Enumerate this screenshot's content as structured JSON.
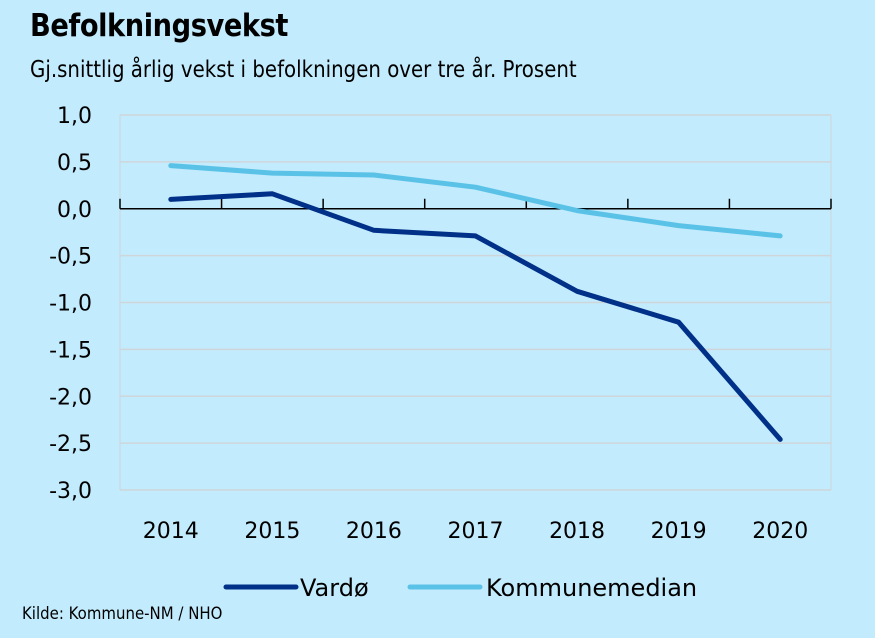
{
  "title": "Befolkningsvekst",
  "subtitle": "Gj.snittlig årlig vekst i befolkningen over tre år. Prosent",
  "source": "Kilde: Kommune-NM / NHO",
  "colors": {
    "background": "#C2EBFD",
    "vardo": "#003087",
    "kommunemedian": "#5BC2E7",
    "gridline": "#CFD6DA",
    "axis": "#000000"
  },
  "chart_data": {
    "type": "line",
    "title": "Befolkningsvekst",
    "subtitle": "Gj.snittlig årlig vekst i befolkningen over tre år. Prosent",
    "xlabel": "",
    "ylabel": "",
    "x": [
      "2014",
      "2015",
      "2016",
      "2017",
      "2018",
      "2019",
      "2020"
    ],
    "series": [
      {
        "name": "Vardø",
        "color": "#003087",
        "values": [
          0.1,
          0.16,
          -0.23,
          -0.29,
          -0.88,
          -1.21,
          -2.46
        ]
      },
      {
        "name": "Kommunemedian",
        "color": "#5BC2E7",
        "values": [
          0.46,
          0.38,
          0.36,
          0.23,
          -0.02,
          -0.18,
          -0.29
        ]
      }
    ],
    "ylim": [
      -3.0,
      1.0
    ],
    "yticks": [
      1.0,
      0.5,
      0.0,
      -0.5,
      -1.0,
      -1.5,
      -2.0,
      -2.5,
      -3.0
    ],
    "ytick_labels": [
      "1,0",
      "0,5",
      "0,0",
      "-0,5",
      "-1,0",
      "-1,5",
      "-2,0",
      "-2,5",
      "-3,0"
    ],
    "grid": true,
    "legend": "bottom-center",
    "source": "Kilde: Kommune-NM / NHO"
  }
}
